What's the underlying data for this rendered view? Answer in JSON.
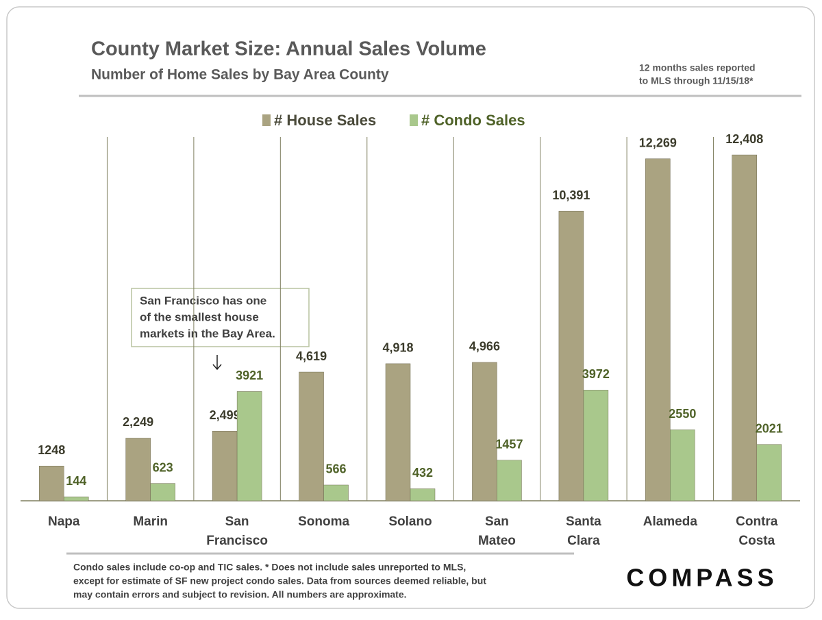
{
  "chart_data": {
    "type": "bar",
    "title": "County Market Size: Annual Sales Volume",
    "subtitle": "Number of Home Sales by Bay Area County",
    "note": [
      "12 months sales reported",
      "to MLS through 11/15/18*"
    ],
    "annotation": [
      "San Francisco has one",
      "of the smallest house",
      "markets in the Bay Area."
    ],
    "footnote": [
      "Condo sales include co-op and TIC sales. * Does not include sales unreported to MLS,",
      "except for estimate of SF new project condo sales. Data from sources deemed reliable, but",
      "may contain errors and subject to revision. All numbers are approximate."
    ],
    "logo": "COMPASS",
    "categories": [
      "Napa",
      "Marin",
      "San Francisco",
      "Sonoma",
      "Solano",
      "San Mateo",
      "Santa Clara",
      "Alameda",
      "Contra Costa"
    ],
    "series": [
      {
        "name": "# House Sales",
        "color": "#aaa381",
        "values": [
          1248,
          2249,
          2499,
          4619,
          4918,
          4966,
          10391,
          12269,
          12408
        ],
        "value_labels": [
          "1248",
          "2,249",
          "2,499",
          "4,619",
          "4,918",
          "4,966",
          "10,391",
          "12,269",
          "12,408"
        ]
      },
      {
        "name": "# Condo Sales",
        "color": "#a9c88c",
        "values": [
          144,
          623,
          3921,
          566,
          432,
          1457,
          3972,
          2550,
          2021
        ]
      }
    ],
    "ylim": [
      0,
      13000
    ],
    "legend": "top"
  }
}
